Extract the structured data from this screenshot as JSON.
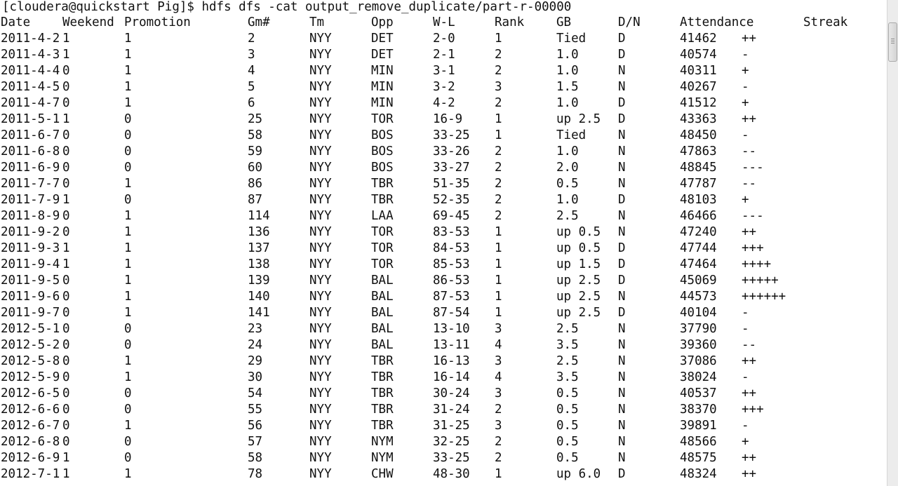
{
  "terminal": {
    "prompt": "[cloudera@quickstart Pig]$ hdfs dfs -cat output_remove_duplicate/part-r-00000",
    "headers": [
      "Date",
      "Weekend",
      "Promotion",
      "Gm#",
      "Tm",
      "Opp",
      "W-L",
      "Rank",
      "GB",
      "D/N",
      "Attendance",
      "Streak"
    ],
    "rows": [
      [
        "2011-4-2",
        "1",
        "1",
        "2",
        "NYY",
        "DET",
        "2-0",
        "1",
        "Tied",
        "D",
        "41462",
        "++"
      ],
      [
        "2011-4-3",
        "1",
        "1",
        "3",
        "NYY",
        "DET",
        "2-1",
        "2",
        "1.0",
        "D",
        "40574",
        "-"
      ],
      [
        "2011-4-4",
        "0",
        "1",
        "4",
        "NYY",
        "MIN",
        "3-1",
        "2",
        "1.0",
        "N",
        "40311",
        "+"
      ],
      [
        "2011-4-5",
        "0",
        "1",
        "5",
        "NYY",
        "MIN",
        "3-2",
        "3",
        "1.5",
        "N",
        "40267",
        "-"
      ],
      [
        "2011-4-7",
        "0",
        "1",
        "6",
        "NYY",
        "MIN",
        "4-2",
        "2",
        "1.0",
        "D",
        "41512",
        "+"
      ],
      [
        "2011-5-1",
        "1",
        "0",
        "25",
        "NYY",
        "TOR",
        "16-9",
        "1",
        "up 2.5",
        "D",
        "43363",
        "++"
      ],
      [
        "2011-6-7",
        "0",
        "0",
        "58",
        "NYY",
        "BOS",
        "33-25",
        "1",
        "Tied",
        "N",
        "48450",
        "-"
      ],
      [
        "2011-6-8",
        "0",
        "0",
        "59",
        "NYY",
        "BOS",
        "33-26",
        "2",
        "1.0",
        "N",
        "47863",
        "--"
      ],
      [
        "2011-6-9",
        "0",
        "0",
        "60",
        "NYY",
        "BOS",
        "33-27",
        "2",
        "2.0",
        "N",
        "48845",
        "---"
      ],
      [
        "2011-7-7",
        "0",
        "1",
        "86",
        "NYY",
        "TBR",
        "51-35",
        "2",
        "0.5",
        "N",
        "47787",
        "--"
      ],
      [
        "2011-7-9",
        "1",
        "0",
        "87",
        "NYY",
        "TBR",
        "52-35",
        "2",
        "1.0",
        "D",
        "48103",
        "+"
      ],
      [
        "2011-8-9",
        "0",
        "1",
        "114",
        "NYY",
        "LAA",
        "69-45",
        "2",
        "2.5",
        "N",
        "46466",
        "---"
      ],
      [
        "2011-9-2",
        "0",
        "1",
        "136",
        "NYY",
        "TOR",
        "83-53",
        "1",
        "up 0.5",
        "N",
        "47240",
        "++"
      ],
      [
        "2011-9-3",
        "1",
        "1",
        "137",
        "NYY",
        "TOR",
        "84-53",
        "1",
        "up 0.5",
        "D",
        "47744",
        "+++"
      ],
      [
        "2011-9-4",
        "1",
        "1",
        "138",
        "NYY",
        "TOR",
        "85-53",
        "1",
        "up 1.5",
        "D",
        "47464",
        "++++"
      ],
      [
        "2011-9-5",
        "0",
        "1",
        "139",
        "NYY",
        "BAL",
        "86-53",
        "1",
        "up 2.5",
        "D",
        "45069",
        "+++++"
      ],
      [
        "2011-9-6",
        "0",
        "1",
        "140",
        "NYY",
        "BAL",
        "87-53",
        "1",
        "up 2.5",
        "N",
        "44573",
        "++++++"
      ],
      [
        "2011-9-7",
        "0",
        "1",
        "141",
        "NYY",
        "BAL",
        "87-54",
        "1",
        "up 2.5",
        "D",
        "40104",
        "-"
      ],
      [
        "2012-5-1",
        "0",
        "0",
        "23",
        "NYY",
        "BAL",
        "13-10",
        "3",
        "2.5",
        "N",
        "37790",
        "-"
      ],
      [
        "2012-5-2",
        "0",
        "0",
        "24",
        "NYY",
        "BAL",
        "13-11",
        "4",
        "3.5",
        "N",
        "39360",
        "--"
      ],
      [
        "2012-5-8",
        "0",
        "1",
        "29",
        "NYY",
        "TBR",
        "16-13",
        "3",
        "2.5",
        "N",
        "37086",
        "++"
      ],
      [
        "2012-5-9",
        "0",
        "1",
        "30",
        "NYY",
        "TBR",
        "16-14",
        "4",
        "3.5",
        "N",
        "38024",
        "-"
      ],
      [
        "2012-6-5",
        "0",
        "0",
        "54",
        "NYY",
        "TBR",
        "30-24",
        "3",
        "0.5",
        "N",
        "40537",
        "++"
      ],
      [
        "2012-6-6",
        "0",
        "0",
        "55",
        "NYY",
        "TBR",
        "31-24",
        "2",
        "0.5",
        "N",
        "38370",
        "+++"
      ],
      [
        "2012-6-7",
        "0",
        "1",
        "56",
        "NYY",
        "TBR",
        "31-25",
        "3",
        "0.5",
        "N",
        "39891",
        "-"
      ],
      [
        "2012-6-8",
        "0",
        "0",
        "57",
        "NYY",
        "NYM",
        "32-25",
        "2",
        "0.5",
        "N",
        "48566",
        "+"
      ],
      [
        "2012-6-9",
        "1",
        "0",
        "58",
        "NYY",
        "NYM",
        "33-25",
        "2",
        "0.5",
        "N",
        "48575",
        "++"
      ],
      [
        "2012-7-1",
        "1",
        "1",
        "78",
        "NYY",
        "CHW",
        "48-30",
        "1",
        "up 6.0",
        "D",
        "48324",
        "++"
      ]
    ]
  },
  "colors": {
    "background": "#ffffff",
    "text": "#111111",
    "scrollbar_track": "#ececec",
    "scrollbar_thumb_border": "#a8a8a8"
  }
}
